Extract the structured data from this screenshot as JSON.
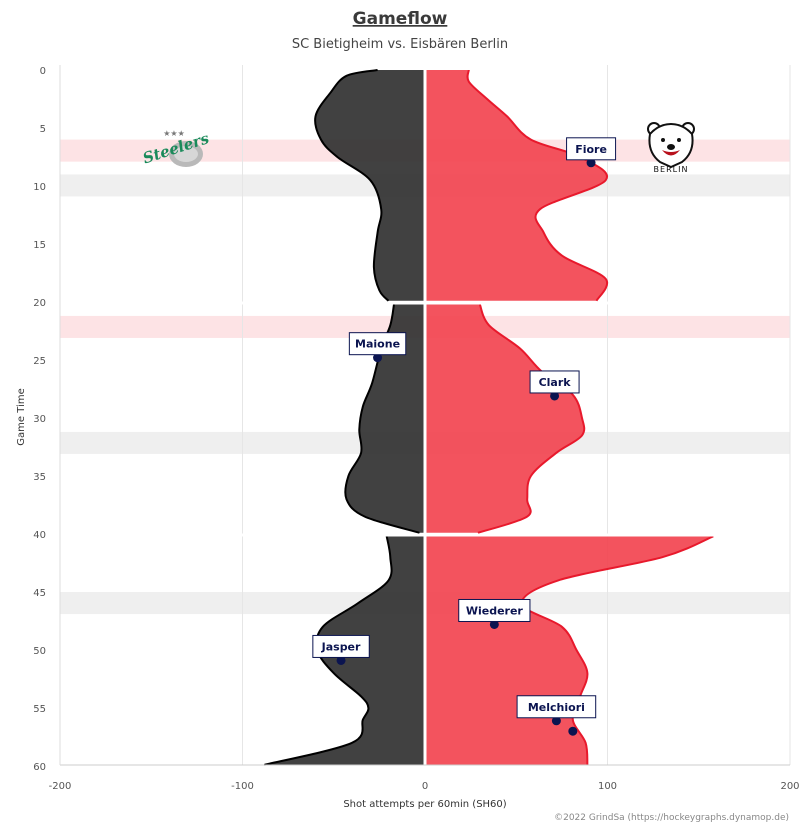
{
  "chart_data": {
    "type": "area",
    "title": "Gameflow",
    "subtitle": "SC Bietigheim vs. Eisbären Berlin",
    "xlabel": "Shot attempts per 60min (SH60)",
    "ylabel": "Game Time",
    "xlim": [
      -200,
      200
    ],
    "ylim": [
      0,
      60
    ],
    "x_ticks": [
      -200,
      -100,
      0,
      100,
      200
    ],
    "y_ticks": [
      0,
      5,
      10,
      15,
      20,
      25,
      30,
      35,
      40,
      45,
      50,
      55,
      60
    ],
    "credit": "©2022 GrindSa (https://hockeygraphs.dynamop.de)",
    "colors": {
      "home": "#333333",
      "away": "#f2404d",
      "away_line": "#e8192c",
      "away_pp_band": "#fde3e5",
      "home_pp_band": "#efefef",
      "marker": "#0b1450"
    },
    "logos": {
      "home": {
        "team": "SC Bietigheim",
        "text": "Steelers",
        "icon": "steelers-logo-icon"
      },
      "away": {
        "team": "Eisbären Berlin",
        "text": "BERLIN",
        "icon": "polar-bear-logo-icon"
      }
    },
    "bands": [
      {
        "from": 6.0,
        "to": 7.9,
        "type": "away"
      },
      {
        "from": 9.0,
        "to": 10.9,
        "type": "home"
      },
      {
        "from": 21.2,
        "to": 23.1,
        "type": "away"
      },
      {
        "from": 31.2,
        "to": 33.1,
        "type": "home"
      },
      {
        "from": 45.0,
        "to": 46.9,
        "type": "home"
      }
    ],
    "series": [
      {
        "name": "SC Bietigheim",
        "side": "left",
        "segments": [
          [
            [
              0,
              -26
            ],
            [
              0.5,
              -43
            ],
            [
              2,
              -52
            ],
            [
              4,
              -60
            ],
            [
              6,
              -57
            ],
            [
              7.5,
              -48
            ],
            [
              9.5,
              -30
            ],
            [
              12,
              -24
            ],
            [
              14,
              -26
            ],
            [
              17,
              -28
            ],
            [
              19,
              -25
            ],
            [
              19.9,
              -20
            ]
          ],
          [
            [
              20.2,
              -17
            ],
            [
              22,
              -19
            ],
            [
              24,
              -24
            ],
            [
              27,
              -29
            ],
            [
              29,
              -34
            ],
            [
              31,
              -36
            ],
            [
              33,
              -35
            ],
            [
              35,
              -42
            ],
            [
              37,
              -43
            ],
            [
              38.5,
              -33
            ],
            [
              39.9,
              -3
            ]
          ],
          [
            [
              40.2,
              -21
            ],
            [
              42,
              -19
            ],
            [
              44,
              -20
            ],
            [
              46,
              -37
            ],
            [
              48,
              -56
            ],
            [
              50,
              -59
            ],
            [
              52,
              -50
            ],
            [
              54,
              -35
            ],
            [
              55,
              -31
            ],
            [
              56,
              -34
            ],
            [
              58,
              -40
            ],
            [
              59.9,
              -88
            ]
          ]
        ]
      },
      {
        "name": "Eisbären Berlin",
        "side": "right",
        "segments": [
          [
            [
              0,
              24
            ],
            [
              1,
              24
            ],
            [
              2.5,
              34
            ],
            [
              4,
              45
            ],
            [
              6,
              58
            ],
            [
              7.5,
              85
            ],
            [
              9.5,
              99
            ],
            [
              12,
              63
            ],
            [
              14,
              65
            ],
            [
              16,
              75
            ],
            [
              18,
              99
            ],
            [
              19.9,
              94
            ]
          ],
          [
            [
              20.2,
              30
            ],
            [
              22,
              35
            ],
            [
              24,
              52
            ],
            [
              26,
              64
            ],
            [
              28,
              81
            ],
            [
              30,
              86
            ],
            [
              31.5,
              86
            ],
            [
              33,
              72
            ],
            [
              35,
              58
            ],
            [
              37,
              56
            ],
            [
              38.5,
              56
            ],
            [
              39.9,
              29
            ]
          ],
          [
            [
              40.2,
              158
            ],
            [
              42,
              130
            ],
            [
              44,
              73
            ],
            [
              46,
              53
            ],
            [
              48,
              75
            ],
            [
              50,
              83
            ],
            [
              52,
              89
            ],
            [
              54,
              85
            ],
            [
              56,
              81
            ],
            [
              58,
              88
            ],
            [
              59.9,
              89
            ]
          ]
        ]
      }
    ],
    "annotations": [
      {
        "label": "Fiore",
        "x": 91,
        "y": 8.0,
        "team": "away"
      },
      {
        "label": "Maione",
        "x": -26,
        "y": 24.8,
        "team": "home"
      },
      {
        "label": "Clark",
        "x": 71,
        "y": 28.1,
        "team": "away"
      },
      {
        "label": "Wiederer",
        "x": 38,
        "y": 47.8,
        "team": "away"
      },
      {
        "label": "Jasper",
        "x": -46,
        "y": 50.9,
        "team": "home"
      },
      {
        "label": "Melchiori",
        "x": 72,
        "y": 56.1,
        "team": "away"
      },
      {
        "label": "",
        "x": 81,
        "y": 57.0,
        "team": "away"
      }
    ]
  }
}
